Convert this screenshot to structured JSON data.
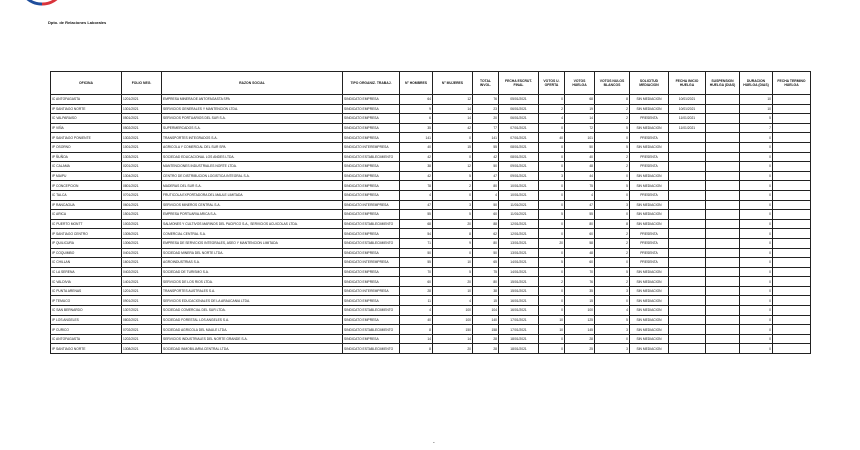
{
  "header": {
    "logo_text": "Dirección del Trabajo",
    "department": "Dpto. de Relaciones Laborales",
    "colors": {
      "blue": "#1f4e9c",
      "red": "#d9343c"
    }
  },
  "table": {
    "columns": [
      "OFICINA",
      "FOLIO NEG.",
      "RAZON SOCIAL",
      "TIPO ORGANIZ. TRABAJ.",
      "N° HOMBRES",
      "N° MUJERES",
      "TOTAL INVOL.",
      "FECHA ESCRUT. FINAL",
      "VOTOS U. OFERTA",
      "VOTOS HUELGA",
      "VOTOS NULOS BLANCOS",
      "SOLICITUD MEDIACION",
      "FECHA INICIO HUELGA",
      "SUSPENSION HUELGA (DIAS)",
      "DURACION HUELGA (DIAS)",
      "FECHA TERMINO HUELGA"
    ],
    "rows": [
      [
        "IC ANTOFAGASTA",
        "1201/2021",
        "EMPRESA MINERA DE ANTOFAGASTA SPA",
        "SINDICATO EMPRESA",
        "64",
        "12",
        "76",
        "05/01/2021",
        "0",
        "68",
        "8",
        "SIN MEDIACION",
        "10/01/2021",
        "",
        "10",
        ""
      ],
      [
        "IP SANTIAGO NORTE",
        "1301/2021",
        "SERVICIOS GENERALES Y MANTENCION LTDA.",
        "SINDICATO EMPRESA",
        "9",
        "14",
        "23",
        "06/01/2021",
        "2",
        "19",
        "2",
        "SIN MEDIACION",
        "10/01/2021",
        "",
        "10",
        ""
      ],
      [
        "IC VALPARAISO",
        "0501/2021",
        "SERVICIOS PORTUARIOS DEL SUR S.A.",
        "SINDICATO EMPRESA",
        "6",
        "14",
        "20",
        "06/01/2021",
        "4",
        "14",
        "2",
        "PRESENTA",
        "11/01/2021",
        "",
        "5",
        ""
      ],
      [
        "IP VIÑA",
        "0502/2021",
        "SUPERMERCADOS S.A.",
        "SINDICATO EMPRESA",
        "35",
        "42",
        "77",
        "07/01/2021",
        "0",
        "72",
        "5",
        "SIN MEDIACION",
        "11/01/2021",
        "",
        "7",
        ""
      ],
      [
        "IP SANTIAGO PONIENTE",
        "1302/2021",
        "TRANSPORTES INTEGRADOS S.A.",
        "SINDICATO EMPRESA",
        "141",
        "0",
        "141",
        "07/01/2021",
        "40",
        "101",
        "0",
        "PRESENTA",
        "",
        "",
        "0",
        ""
      ],
      [
        "IP OSORNO",
        "1001/2021",
        "AGRICOLA Y COMERCIAL DEL SUR SPA",
        "SINDICATO INTEREMPRESA",
        "40",
        "15",
        "55",
        "08/01/2021",
        "0",
        "50",
        "5",
        "SIN MEDIACION",
        "",
        "",
        "0",
        ""
      ],
      [
        "IP ÑUÑOA",
        "1303/2021",
        "SOCIEDAD EDUCACIONAL LOS ANDES LTDA.",
        "SINDICATO ESTABLECIMIENTO",
        "42",
        "0",
        "42",
        "08/01/2021",
        "0",
        "40",
        "2",
        "PRESENTA",
        "",
        "",
        "0",
        ""
      ],
      [
        "IC CALAMA",
        "0201/2021",
        "MANTENCIONES INDUSTRIALES NORTE LTDA.",
        "SINDICATO EMPRESA",
        "38",
        "12",
        "50",
        "09/01/2021",
        "0",
        "48",
        "2",
        "PRESENTA",
        "",
        "",
        "0",
        ""
      ],
      [
        "IP MAIPU",
        "1304/2021",
        "CENTRO DE DISTRIBUCION LOGISTICA INTEGRAL S.A.",
        "SINDICATO EMPRESA",
        "42",
        "5",
        "47",
        "09/01/2021",
        "3",
        "44",
        "0",
        "SIN MEDIACION",
        "",
        "",
        "0",
        ""
      ],
      [
        "IP CONCEPCION",
        "0801/2021",
        "MADERAS DEL SUR S.A.",
        "SINDICATO EMPRESA",
        "78",
        "2",
        "80",
        "10/01/2021",
        "0",
        "75",
        "5",
        "SIN MEDIACION",
        "",
        "",
        "0",
        ""
      ],
      [
        "IC TALCA",
        "0701/2021",
        "FRUTICOLA EXPORTADORA DEL MAULE LIMITADA",
        "SINDICATO EMPRESA",
        "4",
        "0",
        "4",
        "10/01/2021",
        "0",
        "4",
        "0",
        "PRESENTA",
        "",
        "",
        "0",
        ""
      ],
      [
        "IP RANCAGUA",
        "0601/2021",
        "SERVICIOS MINEROS CENTRAL S.A.",
        "SINDICATO INTEREMPRESA",
        "47",
        "3",
        "50",
        "11/01/2021",
        "0",
        "47",
        "3",
        "SIN MEDIACION",
        "",
        "",
        "0",
        ""
      ],
      [
        "IC ARICA",
        "1501/2021",
        "EMPRESA PORTUARIA ARICA S.A.",
        "SINDICATO EMPRESA",
        "55",
        "5",
        "60",
        "11/01/2021",
        "5",
        "55",
        "0",
        "SIN MEDIACION",
        "",
        "",
        "0",
        ""
      ],
      [
        "IC PUERTO MONTT",
        "1002/2021",
        "SALMONES Y CULTIVOS MARINOS DEL PACIFICO S.A., SERVICIOS ACUICOLAS LTDA.",
        "SINDICATO ESTABLECIMIENTO",
        "68",
        "20",
        "88",
        "12/01/2021",
        "0",
        "80",
        "8",
        "SIN MEDIACION",
        "",
        "",
        "0",
        ""
      ],
      [
        "IP SANTIAGO CENTRO",
        "1305/2021",
        "COMERCIAL CENTRAL S.A.",
        "SINDICATO EMPRESA",
        "54",
        "8",
        "62",
        "12/01/2021",
        "0",
        "60",
        "2",
        "PRESENTA",
        "",
        "",
        "0",
        ""
      ],
      [
        "IP QUILICURA",
        "1306/2021",
        "EMPRESA DE SERVICIOS INTEGRALES, ASEO Y MANTENCION LIMITADA",
        "SINDICATO ESTABLECIMIENTO",
        "71",
        "9",
        "80",
        "13/01/2021",
        "20",
        "58",
        "2",
        "PRESENTA",
        "",
        "",
        "0",
        ""
      ],
      [
        "IP COQUIMBO",
        "0401/2021",
        "SOCIEDAD MINERA DEL NORTE LTDA.",
        "SINDICATO EMPRESA",
        "50",
        "0",
        "50",
        "13/01/2021",
        "0",
        "48",
        "2",
        "PRESENTA",
        "",
        "",
        "0",
        ""
      ],
      [
        "IC CHILLAN",
        "1601/2021",
        "AGROINDUSTRIAS S.A.",
        "SINDICATO INTEREMPRESA",
        "55",
        "10",
        "65",
        "14/01/2021",
        "5",
        "60",
        "0",
        "PRESENTA",
        "",
        "",
        "0",
        ""
      ],
      [
        "IC LA SERENA",
        "0402/2021",
        "SOCIEDAD DE TURISMO S.A.",
        "SINDICATO EMPRESA",
        "70",
        "5",
        "75",
        "14/01/2021",
        "0",
        "70",
        "5",
        "SIN MEDIACION",
        "",
        "",
        "0",
        ""
      ],
      [
        "IC VALDIVIA",
        "1401/2021",
        "SERVICIOS DE LOS RIOS LTDA.",
        "SINDICATO EMPRESA",
        "60",
        "20",
        "80",
        "15/01/2021",
        "2",
        "76",
        "2",
        "SIN MEDIACION",
        "",
        "",
        "0",
        ""
      ],
      [
        "IC PUNTA ARENAS",
        "1201/2021",
        "TRANSPORTES AUSTRALES S.A.",
        "SINDICATO INTEREMPRESA",
        "28",
        "10",
        "38",
        "15/01/2021",
        "0",
        "35",
        "3",
        "SIN MEDIACION",
        "",
        "",
        "0",
        ""
      ],
      [
        "IP TEMUCO",
        "0901/2021",
        "SERVICIOS EDUCACIONALES DE LA ARAUCANIA LTDA.",
        "SINDICATO EMPRESA",
        "11",
        "4",
        "15",
        "16/01/2021",
        "0",
        "15",
        "0",
        "SIN MEDIACION",
        "",
        "",
        "0",
        ""
      ],
      [
        "IC SAN BERNARDO",
        "1307/2021",
        "SOCIEDAD COMERCIAL DEL SUR LTDA.",
        "SINDICATO ESTABLECIMIENTO",
        "4",
        "100",
        "104",
        "16/01/2021",
        "0",
        "100",
        "4",
        "SIN MEDIACION",
        "",
        "",
        "0",
        ""
      ],
      [
        "IP LOS ANGELES",
        "0802/2021",
        "SOCIEDAD FORESTAL LOS ANGELES S.A.",
        "SINDICATO EMPRESA",
        "40",
        "100",
        "140",
        "17/01/2021",
        "10",
        "125",
        "5",
        "SIN MEDIACION",
        "",
        "",
        "0",
        ""
      ],
      [
        "IP CURICO",
        "0702/2021",
        "SOCIEDAD AGRICOLA DEL MAULE LTDA.",
        "SINDICATO ESTABLECIMIENTO",
        "8",
        "150",
        "158",
        "17/01/2021",
        "10",
        "145",
        "3",
        "SIN MEDIACION",
        "",
        "",
        "0",
        ""
      ],
      [
        "IC ANTOFAGASTA",
        "1202/2021",
        "SERVICIOS INDUSTRIALES DEL NORTE GRANDE S.A.",
        "SINDICATO EMPRESA",
        "14",
        "14",
        "28",
        "18/01/2021",
        "0",
        "28",
        "0",
        "SIN MEDIACION",
        "",
        "",
        "0",
        ""
      ],
      [
        "IP SANTIAGO NORTE",
        "1308/2021",
        "SOCIEDAD INMOBILIARIA CENTRAL LTDA.",
        "SINDICATO ESTABLECIMIENTO",
        "8",
        "20",
        "28",
        "18/01/2021",
        "0",
        "25",
        "3",
        "SIN MEDIACION",
        "",
        "",
        "0",
        ""
      ]
    ]
  },
  "footer": {
    "page_mark": "-"
  }
}
